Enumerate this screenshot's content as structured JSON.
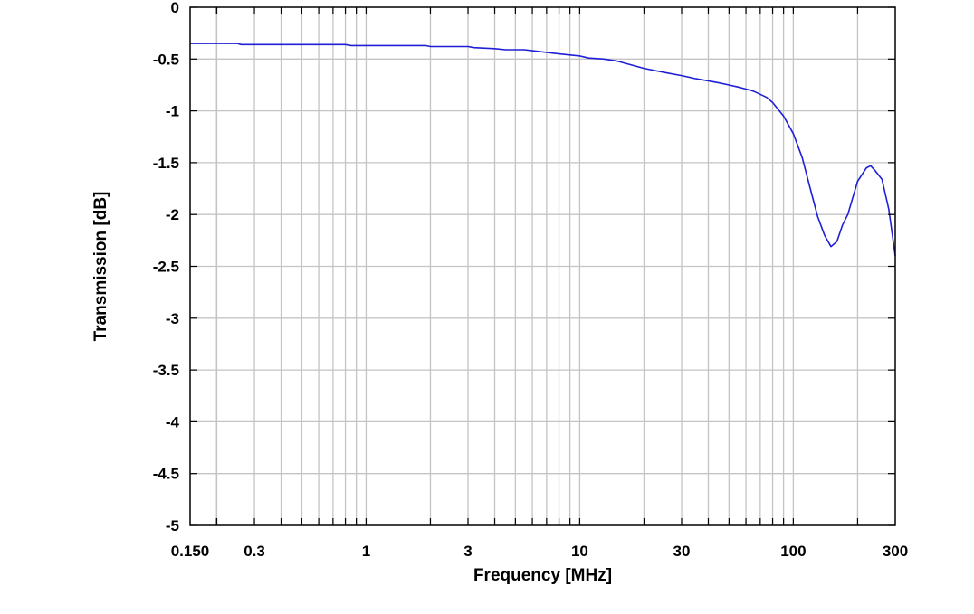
{
  "chart_data": {
    "type": "line",
    "title": "",
    "xlabel": "Frequency [MHz]",
    "ylabel": "Transmission [dB]",
    "xscale": "log",
    "xlim": [
      0.15,
      300
    ],
    "ylim": [
      -5,
      0
    ],
    "grid": true,
    "legend": "none",
    "x_ticks": [
      {
        "value": 0.15,
        "label": "0.150"
      },
      {
        "value": 0.3,
        "label": "0.3"
      },
      {
        "value": 1,
        "label": "1"
      },
      {
        "value": 3,
        "label": "3"
      },
      {
        "value": 10,
        "label": "10"
      },
      {
        "value": 30,
        "label": "30"
      },
      {
        "value": 100,
        "label": "100"
      },
      {
        "value": 300,
        "label": "300"
      }
    ],
    "y_ticks": [
      {
        "value": 0,
        "label": "0"
      },
      {
        "value": -0.5,
        "label": "-0.5"
      },
      {
        "value": -1,
        "label": "-1"
      },
      {
        "value": -1.5,
        "label": "-1.5"
      },
      {
        "value": -2,
        "label": "-2"
      },
      {
        "value": -2.5,
        "label": "-2.5"
      },
      {
        "value": -3,
        "label": "-3"
      },
      {
        "value": -3.5,
        "label": "-3.5"
      },
      {
        "value": -4,
        "label": "-4"
      },
      {
        "value": -4.5,
        "label": "-4.5"
      },
      {
        "value": -5,
        "label": "-5"
      }
    ],
    "series": [
      {
        "color": "#1f1fd6",
        "x": [
          0.15,
          0.25,
          0.26,
          0.3,
          0.5,
          0.8,
          0.85,
          1.0,
          1.5,
          1.9,
          2.0,
          3.0,
          3.2,
          4.0,
          4.5,
          5.5,
          6.0,
          8.0,
          10.0,
          11.0,
          13.0,
          15.0,
          20.0,
          25.0,
          30.0,
          35.0,
          40.0,
          45.0,
          50.0,
          55.0,
          60.0,
          65.0,
          70.0,
          75.0,
          80.0,
          90.0,
          100.0,
          110.0,
          120.0,
          130.0,
          140.0,
          150.0,
          160.0,
          170.0,
          180.0,
          200.0,
          220.0,
          230.0,
          240.0,
          260.0,
          280.0,
          300.0
        ],
        "y": [
          -0.35,
          -0.35,
          -0.36,
          -0.36,
          -0.36,
          -0.36,
          -0.37,
          -0.37,
          -0.37,
          -0.37,
          -0.38,
          -0.38,
          -0.39,
          -0.4,
          -0.41,
          -0.41,
          -0.42,
          -0.45,
          -0.47,
          -0.49,
          -0.5,
          -0.52,
          -0.59,
          -0.63,
          -0.66,
          -0.69,
          -0.71,
          -0.73,
          -0.75,
          -0.77,
          -0.79,
          -0.81,
          -0.84,
          -0.87,
          -0.92,
          -1.05,
          -1.22,
          -1.45,
          -1.75,
          -2.02,
          -2.2,
          -2.31,
          -2.26,
          -2.1,
          -2.0,
          -1.68,
          -1.55,
          -1.53,
          -1.57,
          -1.66,
          -1.95,
          -2.4
        ]
      }
    ]
  }
}
